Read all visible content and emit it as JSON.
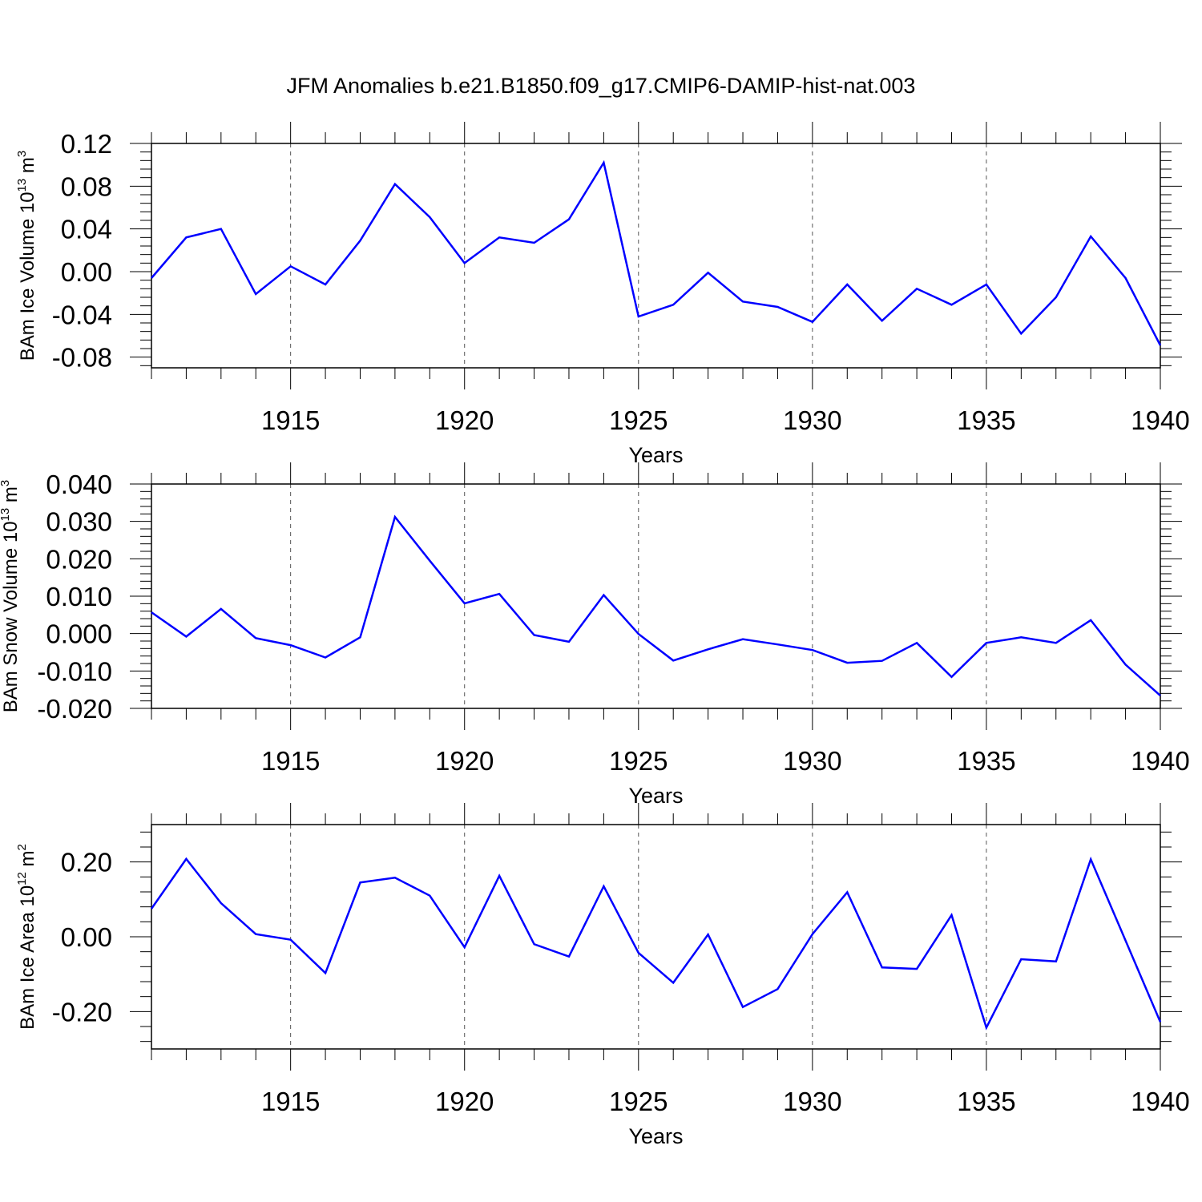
{
  "figure": {
    "title": "JFM Anomalies b.e21.B1850.f09_g17.CMIP6-DAMIP-hist-nat.003"
  },
  "chart_data": [
    {
      "type": "line",
      "ylabel": {
        "text": "BAm Ice Volume 10",
        "exp": "13",
        "unit": " m",
        "unit_exp": "3"
      },
      "xlabel": "Years",
      "xlim": [
        1911,
        1940
      ],
      "ylim": [
        -0.09,
        0.12
      ],
      "y_major_ticks": [
        -0.08,
        -0.04,
        0.0,
        0.04,
        0.08,
        0.12
      ],
      "y_tick_labels": [
        "-0.08",
        "-0.04",
        "0.00",
        "0.04",
        "0.08",
        "0.12"
      ],
      "y_minor_step": 0.008,
      "x_major_ticks": [
        1915,
        1920,
        1925,
        1930,
        1935,
        1940
      ],
      "x_tick_labels": [
        "1915",
        "1920",
        "1925",
        "1930",
        "1935",
        "1940"
      ],
      "grid": "vertical dashed at major x ticks",
      "line_color": "#0000ff",
      "series": [
        {
          "x": [
            1911,
            1912,
            1913,
            1914,
            1915,
            1916,
            1917,
            1918,
            1919,
            1920,
            1921,
            1922,
            1923,
            1924,
            1925,
            1926,
            1927,
            1928,
            1929,
            1930,
            1931,
            1932,
            1933,
            1934,
            1935,
            1936,
            1937,
            1938,
            1939,
            1940
          ],
          "values": [
            -0.006,
            0.032,
            0.04,
            -0.021,
            0.005,
            -0.012,
            0.029,
            0.082,
            0.051,
            0.008,
            0.032,
            0.027,
            0.049,
            0.102,
            -0.042,
            -0.031,
            -0.001,
            -0.028,
            -0.033,
            -0.047,
            -0.012,
            -0.046,
            -0.016,
            -0.031,
            -0.012,
            -0.058,
            -0.024,
            0.033,
            -0.006,
            -0.069
          ]
        }
      ]
    },
    {
      "type": "line",
      "ylabel": {
        "text": "BAm Snow Volume 10",
        "exp": "13",
        "unit": " m",
        "unit_exp": "3"
      },
      "xlabel": "Years",
      "xlim": [
        1911,
        1940
      ],
      "ylim": [
        -0.02,
        0.04
      ],
      "y_major_ticks": [
        -0.02,
        -0.01,
        0.0,
        0.01,
        0.02,
        0.03,
        0.04
      ],
      "y_tick_labels": [
        "-0.020",
        "-0.010",
        "0.000",
        "0.010",
        "0.020",
        "0.030",
        "0.040"
      ],
      "y_minor_step": 0.002,
      "x_major_ticks": [
        1915,
        1920,
        1925,
        1930,
        1935,
        1940
      ],
      "x_tick_labels": [
        "1915",
        "1920",
        "1925",
        "1930",
        "1935",
        "1940"
      ],
      "grid": "vertical dashed at major x ticks",
      "line_color": "#0000ff",
      "series": [
        {
          "x": [
            1911,
            1912,
            1913,
            1914,
            1915,
            1916,
            1917,
            1918,
            1919,
            1920,
            1921,
            1922,
            1923,
            1924,
            1925,
            1926,
            1927,
            1928,
            1929,
            1930,
            1931,
            1932,
            1933,
            1934,
            1935,
            1936,
            1937,
            1938,
            1939,
            1940
          ],
          "values": [
            0.0057,
            -0.0008,
            0.0066,
            -0.0012,
            -0.0031,
            -0.0064,
            -0.001,
            0.0312,
            0.0195,
            0.0081,
            0.0106,
            -0.0004,
            -0.0022,
            0.0103,
            -0.0001,
            -0.0072,
            -0.0042,
            -0.0015,
            -0.0029,
            -0.0044,
            -0.0078,
            -0.0073,
            -0.0025,
            -0.0116,
            -0.0025,
            -0.001,
            -0.0025,
            0.0036,
            -0.0083,
            -0.0166
          ]
        }
      ]
    },
    {
      "type": "line",
      "ylabel": {
        "text": "BAm Ice Area 10",
        "exp": "12",
        "unit": " m",
        "unit_exp": "2"
      },
      "xlabel": "Years",
      "xlim": [
        1911,
        1940
      ],
      "ylim": [
        -0.3,
        0.3
      ],
      "y_major_ticks": [
        -0.2,
        0.0,
        0.2
      ],
      "y_tick_labels": [
        "-0.20",
        "0.00",
        "0.20"
      ],
      "y_minor_step": 0.04,
      "x_major_ticks": [
        1915,
        1920,
        1925,
        1930,
        1935,
        1940
      ],
      "x_tick_labels": [
        "1915",
        "1920",
        "1925",
        "1930",
        "1935",
        "1940"
      ],
      "grid": "vertical dashed at major x ticks",
      "line_color": "#0000ff",
      "series": [
        {
          "x": [
            1911,
            1912,
            1913,
            1914,
            1915,
            1916,
            1917,
            1918,
            1919,
            1920,
            1921,
            1922,
            1923,
            1924,
            1925,
            1926,
            1927,
            1928,
            1929,
            1930,
            1931,
            1932,
            1933,
            1934,
            1935,
            1936,
            1937,
            1938,
            1939,
            1940
          ],
          "values": [
            0.075,
            0.208,
            0.09,
            0.007,
            -0.008,
            -0.097,
            0.145,
            0.158,
            0.11,
            -0.028,
            0.163,
            -0.02,
            -0.053,
            0.135,
            -0.043,
            -0.123,
            0.006,
            -0.188,
            -0.14,
            0.007,
            0.119,
            -0.082,
            -0.086,
            0.058,
            -0.243,
            -0.06,
            -0.066,
            0.207,
            -0.01,
            -0.228
          ]
        }
      ]
    }
  ]
}
